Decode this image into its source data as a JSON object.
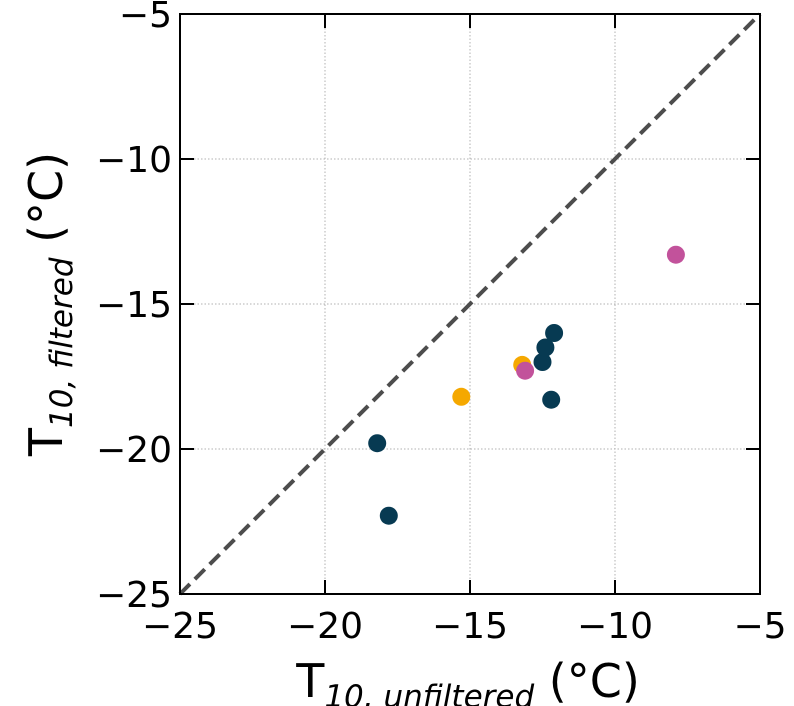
{
  "chart_data": {
    "type": "scatter",
    "xlabel": {
      "main": "T",
      "sub": "10, unfiltered",
      "unit": " (°C)"
    },
    "ylabel": {
      "main": "T",
      "sub": "10, filtered",
      "unit": " (°C)"
    },
    "xlim": [
      -25,
      -5
    ],
    "ylim": [
      -25,
      -5
    ],
    "x_ticks": [
      -25,
      -20,
      -15,
      -10,
      -5
    ],
    "y_ticks": [
      -25,
      -20,
      -15,
      -10,
      -5
    ],
    "x_tick_labels": [
      "−25",
      "−20",
      "−15",
      "−10",
      "−5"
    ],
    "y_tick_labels": [
      "−25",
      "−20",
      "−15",
      "−10",
      "−5"
    ],
    "grid": true,
    "reference_line": {
      "style": "dashed",
      "color": "#4d4d4d",
      "from": [
        -25,
        -25
      ],
      "to": [
        -5,
        -5
      ]
    },
    "series": [
      {
        "color": "#073a52",
        "points": [
          {
            "x": -18.2,
            "y": -19.8
          },
          {
            "x": -17.8,
            "y": -22.3
          },
          {
            "x": -12.5,
            "y": -17.0
          },
          {
            "x": -12.4,
            "y": -16.5
          },
          {
            "x": -12.1,
            "y": -16.0
          },
          {
            "x": -12.2,
            "y": -18.3
          }
        ]
      },
      {
        "color": "#f5a800",
        "points": [
          {
            "x": -15.3,
            "y": -18.2
          },
          {
            "x": -13.2,
            "y": -17.1
          }
        ]
      },
      {
        "color": "#c2529b",
        "points": [
          {
            "x": -13.1,
            "y": -17.3
          },
          {
            "x": -7.9,
            "y": -13.3
          }
        ]
      }
    ]
  }
}
